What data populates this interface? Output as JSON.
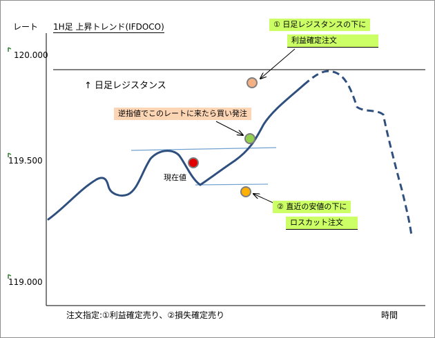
{
  "y_axis_label": "レート",
  "x_axis_label": "時間",
  "chart_title": "1H足 上昇トレンド(IFDOCO)",
  "y_ticks": [
    "120.000",
    "119.500",
    "119.000"
  ],
  "resistance_label": "↑ 日足レジスタンス",
  "current_price_label": "現在値",
  "callout_take_profit": {
    "line1": "① 日足レジスタンスの下に",
    "line2": "利益確定注文"
  },
  "callout_entry": "逆指値でこのレートに来たら買い発注",
  "callout_stop_loss": {
    "line1": "② 直近の安値の下に",
    "line2": "ロスカット注文"
  },
  "footer_note": "注文指定:①利益確定売り、②損失確定売り",
  "colors": {
    "price_line": "#2f4f7f",
    "resistance_line": "#000000",
    "trend_lines": "#6fa0d0",
    "take_profit_dot": "#f4b183",
    "entry_dot": "#92d050",
    "current_dot": "#e00000",
    "stop_loss_dot": "#ffb000",
    "green_box": "#ccff66",
    "salmon_box": "#fcd5b4",
    "tick_marker": "#2e7d32"
  },
  "icons": [
    "up-arrow-icon",
    "pointer-arrow-icon"
  ]
}
